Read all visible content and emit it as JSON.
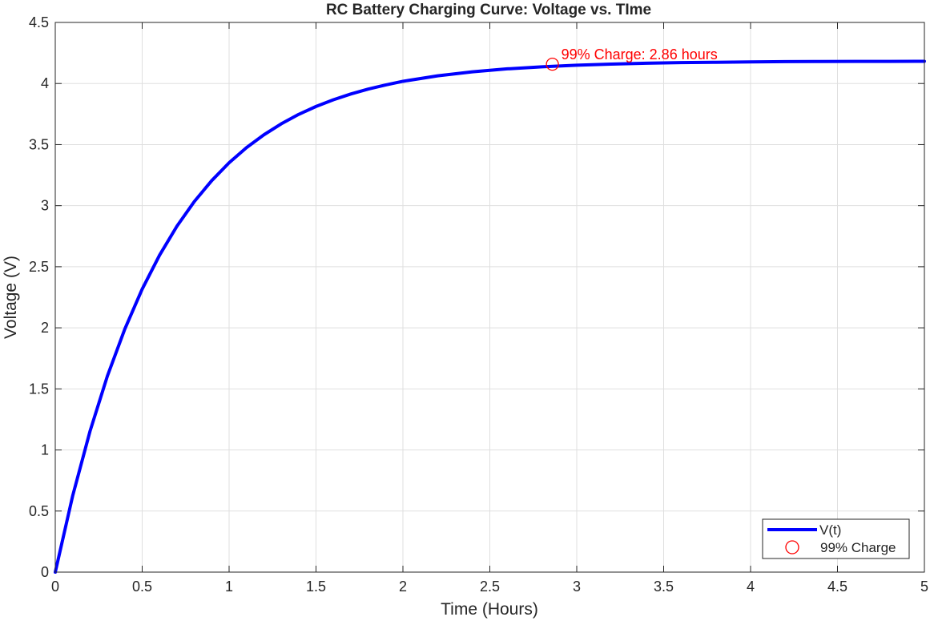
{
  "colors": {
    "curve": "#0000ff",
    "marker": "#ff0000",
    "annotation": "#ff0000",
    "grid": "#dfdfdf",
    "axis": "#262626"
  },
  "chart_data": {
    "type": "line",
    "title": "RC Battery Charging Curve: Voltage vs. TIme",
    "xlabel": "Time (Hours)",
    "ylabel": "Voltage (V)",
    "xlim": [
      0,
      5
    ],
    "ylim": [
      0,
      4.5
    ],
    "xticks": [
      0,
      0.5,
      1,
      1.5,
      2,
      2.5,
      3,
      3.5,
      4,
      4.5,
      5
    ],
    "xtick_labels": [
      "0",
      "0.5",
      "1",
      "1.5",
      "2",
      "2.5",
      "3",
      "3.5",
      "4",
      "4.5",
      "5"
    ],
    "yticks": [
      0,
      0.5,
      1,
      1.5,
      2,
      2.5,
      3,
      3.5,
      4,
      4.5
    ],
    "ytick_labels": [
      "0",
      "0.5",
      "1",
      "1.5",
      "2",
      "2.5",
      "3",
      "3.5",
      "4",
      "4.5"
    ],
    "grid": true,
    "legend_position": "bottom-right",
    "series": [
      {
        "name": "V(t)",
        "style": "solid line",
        "x": [
          0,
          0.1,
          0.2,
          0.3,
          0.4,
          0.5,
          0.6,
          0.7,
          0.8,
          0.9,
          1.0,
          1.1,
          1.2,
          1.3,
          1.4,
          1.5,
          1.6,
          1.7,
          1.8,
          1.9,
          2.0,
          2.2,
          2.4,
          2.6,
          2.8,
          3.0,
          3.2,
          3.4,
          3.6,
          3.8,
          4.0,
          4.2,
          4.4,
          4.6,
          4.8,
          5.0
        ],
        "y": [
          0,
          0.624,
          1.154,
          1.606,
          1.99,
          2.317,
          2.595,
          2.832,
          3.034,
          3.205,
          3.351,
          3.475,
          3.58,
          3.67,
          3.747,
          3.812,
          3.867,
          3.914,
          3.954,
          3.988,
          4.018,
          4.063,
          4.096,
          4.12,
          4.137,
          4.15,
          4.159,
          4.166,
          4.171,
          4.174,
          4.177,
          4.179,
          4.18,
          4.181,
          4.181,
          4.182
        ]
      },
      {
        "name": "99% Charge",
        "style": "circle marker",
        "x": [
          2.86
        ],
        "y": [
          4.158
        ]
      }
    ],
    "annotations": [
      {
        "text": "99% Charge: 2.86 hours",
        "x": 2.86,
        "y": 4.158
      }
    ]
  }
}
